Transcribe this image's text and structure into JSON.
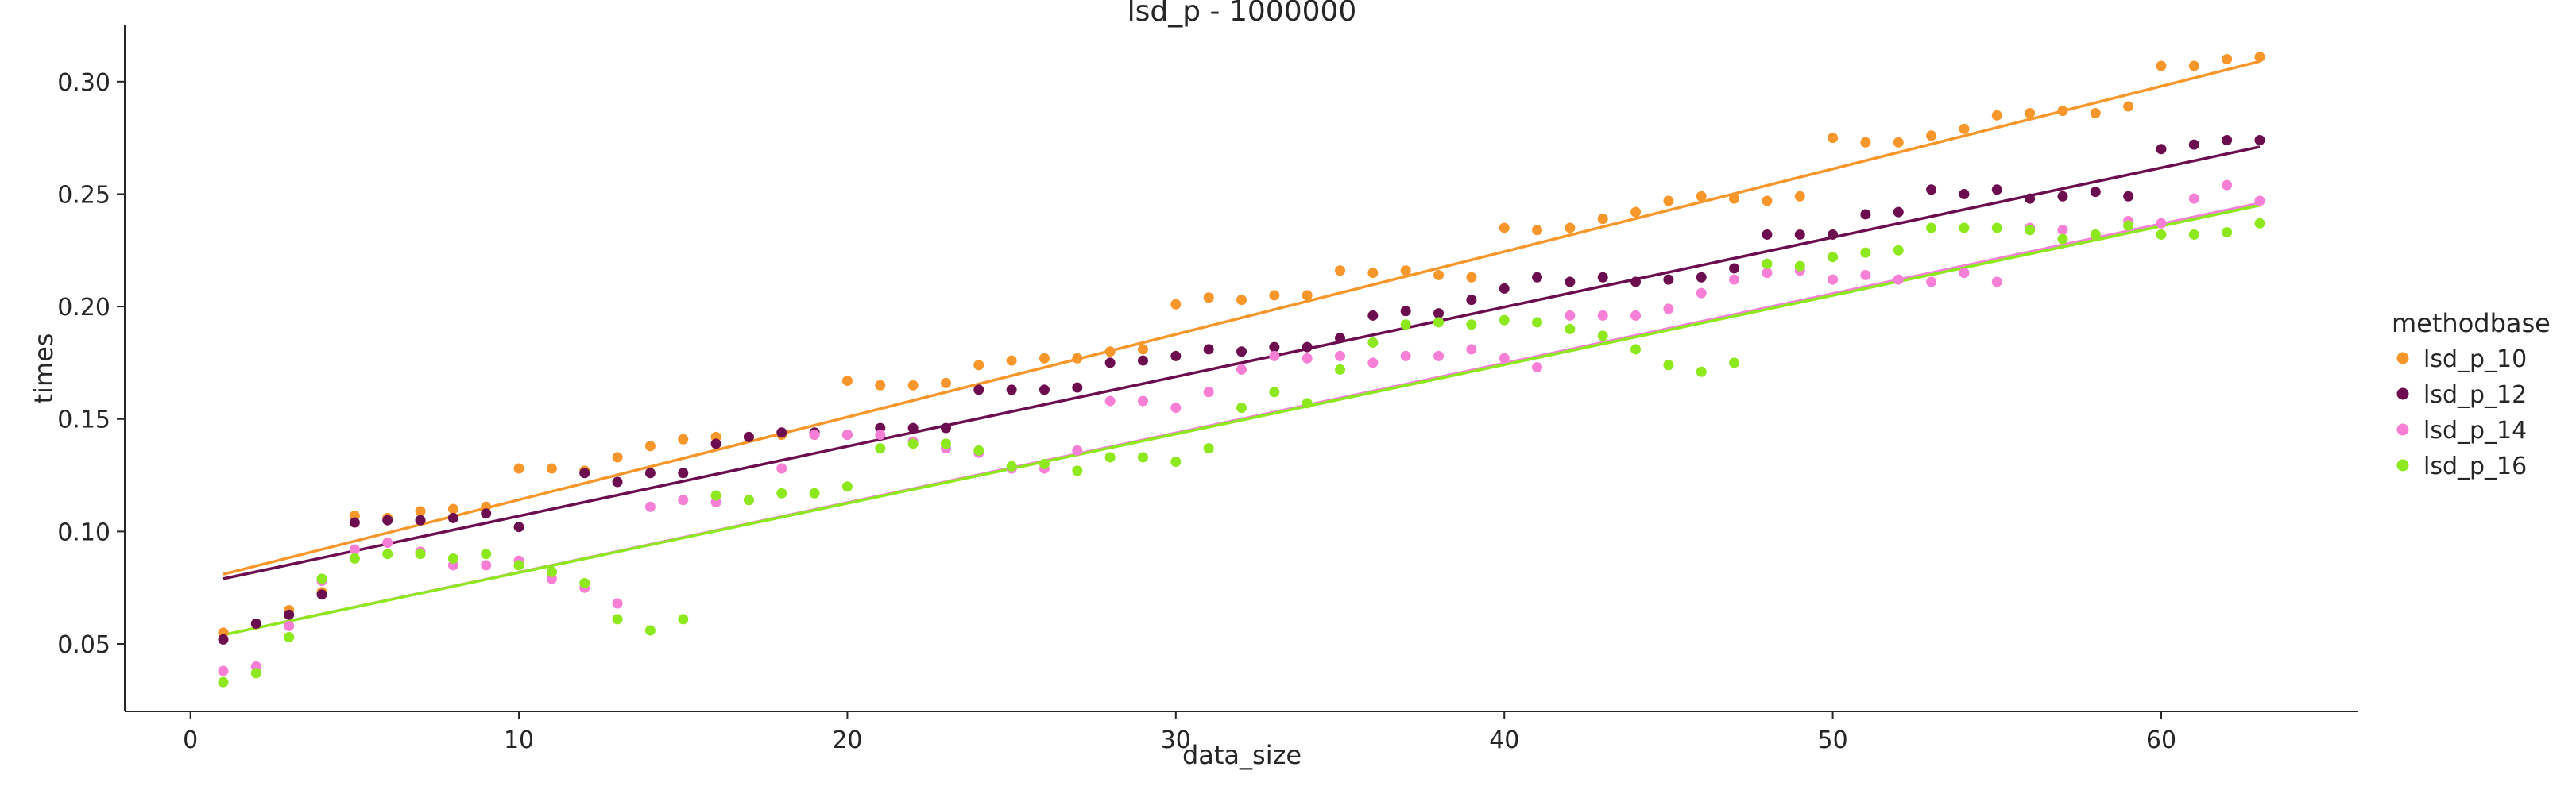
{
  "chart_data": {
    "type": "scatter",
    "title": "lsd_p - 1000000",
    "xlabel": "data_size",
    "ylabel": "times",
    "xlim": [
      -2,
      66
    ],
    "ylim": [
      0.02,
      0.325
    ],
    "xticks": [
      0,
      10,
      20,
      30,
      40,
      50,
      60
    ],
    "yticks": [
      0.05,
      0.1,
      0.15,
      0.2,
      0.25,
      0.3
    ],
    "grid": false,
    "legend": {
      "title": "methodbase",
      "placement": "right"
    },
    "x": [
      1,
      2,
      3,
      4,
      5,
      6,
      7,
      8,
      9,
      10,
      11,
      12,
      13,
      14,
      15,
      16,
      17,
      18,
      19,
      20,
      21,
      22,
      23,
      24,
      25,
      26,
      27,
      28,
      29,
      30,
      31,
      32,
      33,
      34,
      35,
      36,
      37,
      38,
      39,
      40,
      41,
      42,
      43,
      44,
      45,
      46,
      47,
      48,
      49,
      50,
      51,
      52,
      53,
      54,
      55,
      56,
      57,
      58,
      59,
      60,
      61,
      62,
      63
    ],
    "series": [
      {
        "name": "lsd_p_10",
        "color": "#f7962b",
        "values": [
          0.055,
          0.059,
          0.065,
          0.073,
          0.107,
          0.106,
          0.109,
          0.11,
          0.111,
          0.128,
          0.128,
          0.127,
          0.133,
          0.138,
          0.141,
          0.142,
          0.142,
          0.143,
          0.143,
          0.167,
          0.165,
          0.165,
          0.166,
          0.174,
          0.176,
          0.177,
          0.177,
          0.18,
          0.181,
          0.201,
          0.204,
          0.203,
          0.205,
          0.205,
          0.216,
          0.215,
          0.216,
          0.214,
          0.213,
          0.235,
          0.234,
          0.235,
          0.239,
          0.242,
          0.247,
          0.249,
          0.248,
          0.247,
          0.249,
          0.275,
          0.273,
          0.273,
          0.276,
          0.279,
          0.285,
          0.286,
          0.287,
          0.286,
          0.289,
          0.307,
          0.307,
          0.31,
          0.311
        ],
        "fit": [
          0.081,
          0.309
        ]
      },
      {
        "name": "lsd_p_12",
        "color": "#6b0d4e",
        "values": [
          0.052,
          0.059,
          0.063,
          0.072,
          0.104,
          0.105,
          0.105,
          0.106,
          0.108,
          0.102,
          0.082,
          0.126,
          0.122,
          0.126,
          0.126,
          0.139,
          0.142,
          0.144,
          0.144,
          0.143,
          0.146,
          0.146,
          0.146,
          0.163,
          0.163,
          0.163,
          0.164,
          0.175,
          0.176,
          0.178,
          0.181,
          0.18,
          0.182,
          0.182,
          0.186,
          0.196,
          0.198,
          0.197,
          0.203,
          0.208,
          0.213,
          0.211,
          0.213,
          0.211,
          0.212,
          0.213,
          0.217,
          0.232,
          0.232,
          0.232,
          0.241,
          0.242,
          0.252,
          0.25,
          0.252,
          0.248,
          0.249,
          0.251,
          0.249,
          0.27,
          0.272,
          0.274,
          0.274
        ],
        "fit": [
          0.079,
          0.271
        ]
      },
      {
        "name": "lsd_p_14",
        "color": "#f77fd6",
        "values": [
          0.038,
          0.04,
          0.058,
          0.078,
          0.092,
          0.095,
          0.091,
          0.085,
          0.085,
          0.087,
          0.079,
          0.075,
          0.068,
          0.111,
          0.114,
          0.113,
          0.114,
          0.128,
          0.143,
          0.143,
          0.143,
          0.14,
          0.137,
          0.135,
          0.128,
          0.128,
          0.136,
          0.158,
          0.158,
          0.155,
          0.162,
          0.172,
          0.178,
          0.177,
          0.178,
          0.175,
          0.178,
          0.178,
          0.181,
          0.177,
          0.173,
          0.196,
          0.196,
          0.196,
          0.199,
          0.206,
          0.212,
          0.215,
          0.216,
          0.212,
          0.214,
          0.212,
          0.211,
          0.215,
          0.211,
          0.235,
          0.234,
          0.232,
          0.238,
          0.237,
          0.248,
          0.254,
          0.247
        ],
        "fit": [
          0.054,
          0.246
        ]
      },
      {
        "name": "lsd_p_16",
        "color": "#8de81d",
        "values": [
          0.033,
          0.037,
          0.053,
          0.079,
          0.088,
          0.09,
          0.09,
          0.088,
          0.09,
          0.085,
          0.082,
          0.077,
          0.061,
          0.056,
          0.061,
          0.116,
          0.114,
          0.117,
          0.117,
          0.12,
          0.137,
          0.139,
          0.139,
          0.136,
          0.129,
          0.13,
          0.127,
          0.133,
          0.133,
          0.131,
          0.137,
          0.155,
          0.162,
          0.157,
          0.172,
          0.184,
          0.192,
          0.193,
          0.192,
          0.194,
          0.193,
          0.19,
          0.187,
          0.181,
          0.174,
          0.171,
          0.175,
          0.219,
          0.218,
          0.222,
          0.224,
          0.225,
          0.235,
          0.235,
          0.235,
          0.234,
          0.23,
          0.232,
          0.236,
          0.232,
          0.232,
          0.233,
          0.237
        ],
        "fit": [
          0.054,
          0.245
        ]
      }
    ]
  }
}
